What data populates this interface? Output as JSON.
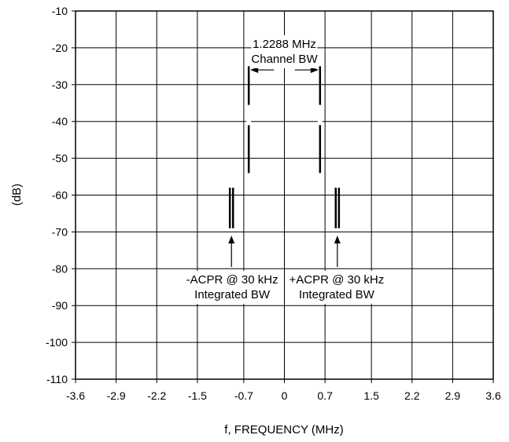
{
  "chart_data": {
    "type": "line",
    "title": "",
    "xlabel": "f, FREQUENCY (MHz)",
    "ylabel": "(dB)",
    "xlim": [
      -3.6,
      3.6
    ],
    "ylim": [
      -110,
      -10
    ],
    "grid": true,
    "x_ticks": [
      -3.6,
      -2.9,
      -2.2,
      -1.5,
      -0.7,
      0,
      0.7,
      1.5,
      2.2,
      2.9,
      3.6
    ],
    "x_tick_labels": [
      "-3.6",
      "-2.9",
      "-2.2",
      "-1.5",
      "-0.7",
      "0",
      "0.7",
      "1.5",
      "2.2",
      "2.9",
      "3.6"
    ],
    "y_ticks": [
      -10,
      -20,
      -30,
      -40,
      -50,
      -60,
      -70,
      -80,
      -90,
      -100,
      -110
    ],
    "y_tick_labels": [
      "-10",
      "-20",
      "-30",
      "-40",
      "-50",
      "-60",
      "-70",
      "-80",
      "-90",
      "-100",
      "-110"
    ],
    "series": [
      {
        "x": [
          -0.6144,
          -0.6144
        ],
        "y": [
          -25,
          -54
        ]
      },
      {
        "x": [
          0.6144,
          0.6144
        ],
        "y": [
          -25,
          -54
        ]
      },
      {
        "x": [
          -0.94,
          -0.94
        ],
        "y": [
          -58,
          -69
        ]
      },
      {
        "x": [
          -0.885,
          -0.885
        ],
        "y": [
          -58,
          -69
        ]
      },
      {
        "x": [
          0.885,
          0.885
        ],
        "y": [
          -58,
          -69
        ]
      },
      {
        "x": [
          0.94,
          0.94
        ],
        "y": [
          -58,
          -69
        ]
      }
    ],
    "annotations": [
      {
        "lines": [
          "1.2288 MHz",
          "Channel BW"
        ],
        "x": 0,
        "y": -20
      },
      {
        "lines": [
          "-ACPR @ 30 kHz",
          "Integrated BW"
        ],
        "x": -0.9,
        "y": -84
      },
      {
        "lines": [
          "+ACPR @ 30 kHz",
          "Integrated BW"
        ],
        "x": 0.9,
        "y": -84
      }
    ]
  }
}
